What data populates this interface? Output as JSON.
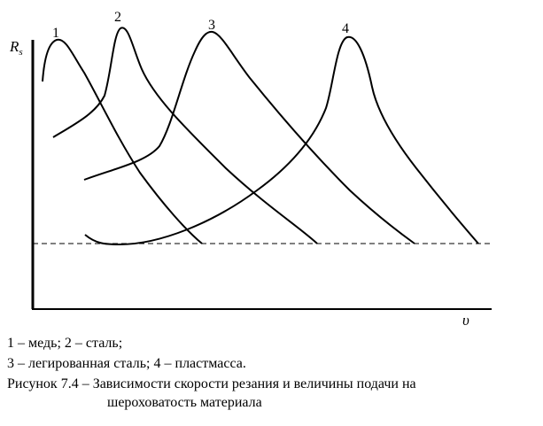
{
  "chart_data": {
    "type": "line",
    "xlabel": "υ",
    "ylabel": "Rs",
    "ylabel_main": "R",
    "ylabel_sub": "s",
    "grid": false,
    "reference_line": "dashed horizontal line",
    "series": [
      {
        "name": "1"
      },
      {
        "name": "2"
      },
      {
        "name": "3"
      },
      {
        "name": "4"
      }
    ]
  },
  "caption": {
    "legend_line_1": "1 – медь; 2 – сталь;",
    "legend_line_2": "3 – легированная сталь; 4 – пластмасса.",
    "title": "Рисунок 7.4 – Зависимости скорости резания и величины подачи на",
    "title_continued": "шероховатость материала"
  }
}
